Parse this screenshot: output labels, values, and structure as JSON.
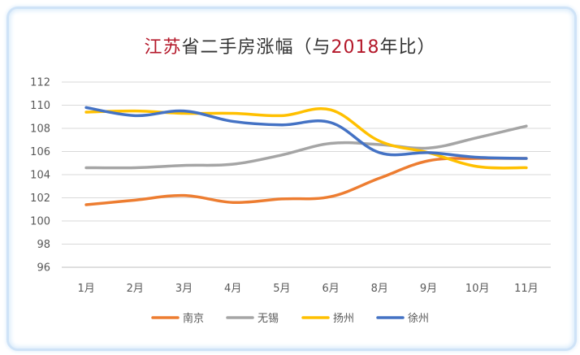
{
  "title": {
    "part1": "江苏",
    "part2": "省二手房涨幅（与",
    "part3": "2018",
    "part4": "年比）"
  },
  "chart_data": {
    "type": "line",
    "categories": [
      "1月",
      "2月",
      "3月",
      "4月",
      "5月",
      "6月",
      "8月",
      "9月",
      "10月",
      "11月"
    ],
    "ylim": [
      96,
      112
    ],
    "yticks": [
      96,
      98,
      100,
      102,
      104,
      106,
      108,
      110,
      112
    ],
    "grid": true,
    "legend_position": "bottom",
    "series": [
      {
        "name": "南京",
        "color": "#ed7d31",
        "values": [
          101.4,
          101.8,
          102.2,
          101.6,
          101.9,
          102.1,
          103.7,
          105.2,
          105.4,
          105.4
        ]
      },
      {
        "name": "无锡",
        "color": "#a5a5a5",
        "values": [
          104.6,
          104.6,
          104.8,
          104.9,
          105.7,
          106.7,
          106.6,
          106.3,
          107.2,
          108.2
        ]
      },
      {
        "name": "扬州",
        "color": "#ffc000",
        "values": [
          109.4,
          109.5,
          109.3,
          109.3,
          109.1,
          109.6,
          106.9,
          105.9,
          104.7,
          104.6
        ]
      },
      {
        "name": "徐州",
        "color": "#4472c4",
        "values": [
          109.8,
          109.1,
          109.5,
          108.6,
          108.3,
          108.5,
          105.9,
          105.9,
          105.5,
          105.4
        ]
      }
    ]
  }
}
